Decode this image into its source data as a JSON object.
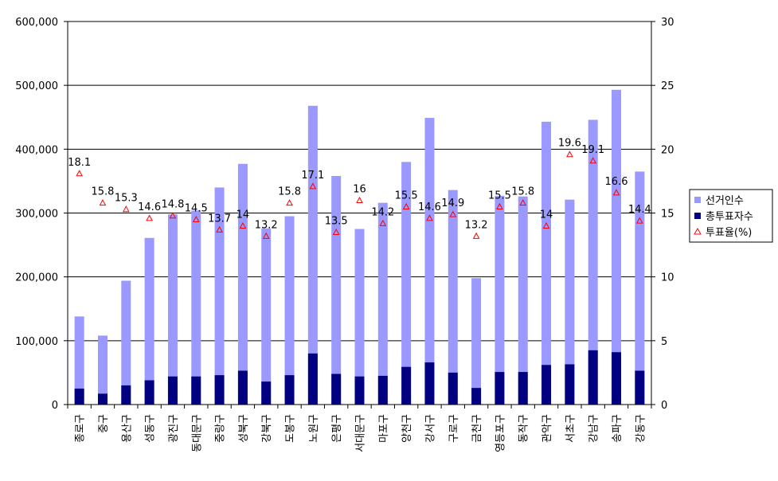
{
  "chart_data": {
    "type": "bar",
    "categories": [
      "종로구",
      "중구",
      "용산구",
      "성동구",
      "광진구",
      "동대문구",
      "중랑구",
      "성북구",
      "강북구",
      "도봉구",
      "노원구",
      "은평구",
      "서대문구",
      "마포구",
      "양천구",
      "강서구",
      "구로구",
      "금천구",
      "영등포구",
      "동작구",
      "관악구",
      "서초구",
      "강남구",
      "송파구",
      "강동구"
    ],
    "series": [
      {
        "name": "선거인수",
        "axis": "left",
        "color": "#9999ff",
        "values": [
          138000,
          108000,
          194000,
          261000,
          298000,
          304000,
          340000,
          377000,
          276000,
          295000,
          468000,
          358000,
          275000,
          316000,
          380000,
          449000,
          336000,
          198000,
          327000,
          326000,
          443000,
          321000,
          446000,
          493000,
          365000
        ]
      },
      {
        "name": "총투표자수",
        "axis": "left",
        "color": "#000080",
        "values": [
          25000,
          17000,
          30000,
          38000,
          44000,
          44000,
          46000,
          53000,
          36000,
          46000,
          80000,
          48000,
          44000,
          45000,
          59000,
          66000,
          50000,
          26000,
          51000,
          51000,
          62000,
          63000,
          85000,
          82000,
          53000
        ]
      },
      {
        "name": "투표율(%)",
        "axis": "right",
        "type": "scatter",
        "color": "#ff0000",
        "values": [
          18.1,
          15.8,
          15.3,
          14.6,
          14.8,
          14.5,
          13.7,
          14,
          13.2,
          15.8,
          17.1,
          13.5,
          16,
          14.2,
          15.5,
          14.6,
          14.9,
          13.2,
          15.5,
          15.8,
          14,
          19.6,
          19.1,
          16.6,
          14.4
        ],
        "labels": [
          "18.1",
          "15.8",
          "15.3",
          "14.6",
          "14.8",
          "14.5",
          "13.7",
          "14",
          "13.2",
          "15.8",
          "17.1",
          "13.5",
          "16",
          "14.2",
          "15.5",
          "14.6",
          "14.9",
          "13.2",
          "15.5",
          "15.8",
          "14",
          "19.6",
          "19.1",
          "16.6",
          "14.4"
        ]
      }
    ],
    "y_left": {
      "min": 0,
      "max": 600000,
      "ticks": [
        "0",
        "100,000",
        "200,000",
        "300,000",
        "400,000",
        "500,000",
        "600,000"
      ]
    },
    "y_right": {
      "min": 0,
      "max": 30,
      "ticks": [
        "0",
        "5",
        "10",
        "15",
        "20",
        "25",
        "30"
      ]
    },
    "grid": true,
    "legend_position": "right",
    "legend": [
      "선거인수",
      "총투표자수",
      "투표율(%)"
    ]
  }
}
